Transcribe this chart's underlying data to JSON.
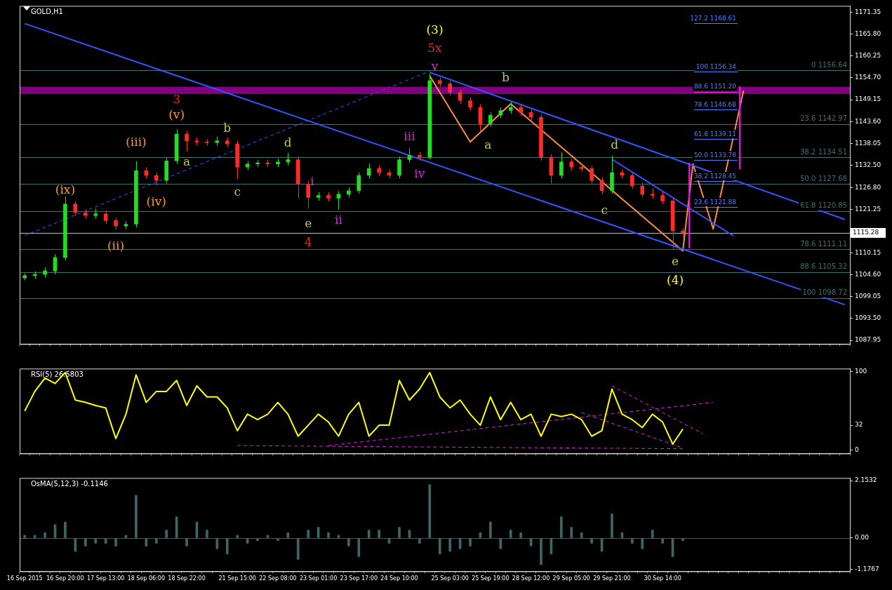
{
  "chart_data": [
    {
      "type": "candlestick",
      "title": "GOLD,H1",
      "grid": false,
      "categories": [
        null,
        null,
        null,
        null,
        null,
        null,
        null,
        null,
        null,
        null,
        null,
        null,
        null,
        null,
        null,
        null,
        null,
        null,
        null,
        null,
        null,
        null,
        null,
        null,
        null,
        null,
        null,
        null,
        null,
        null,
        null,
        null,
        null,
        null,
        null,
        null,
        null,
        null,
        null,
        null,
        null,
        null,
        null,
        null,
        null,
        null,
        null,
        null,
        null,
        null,
        null,
        null,
        null,
        null,
        null,
        null,
        null,
        null,
        null,
        null,
        null,
        null,
        null,
        null,
        null,
        null,
        null,
        null,
        null,
        null,
        null,
        null,
        null,
        null,
        null,
        null,
        null,
        null,
        null,
        null,
        null,
        null
      ],
      "ohlc": [
        [
          1103.8,
          1105.0,
          1103.2,
          1104.4
        ],
        [
          1104.4,
          1105.5,
          1103.6,
          1104.7
        ],
        [
          1104.7,
          1106.4,
          1103.9,
          1105.6
        ],
        [
          1105.6,
          1109.8,
          1104.8,
          1109.0
        ],
        [
          1109.0,
          1124.5,
          1108.2,
          1122.6
        ],
        [
          1122.6,
          1123.4,
          1119.6,
          1120.4
        ],
        [
          1120.4,
          1121.2,
          1118.9,
          1119.7
        ],
        [
          1119.7,
          1121.4,
          1118.9,
          1120.1
        ],
        [
          1120.1,
          1120.9,
          1117.6,
          1118.4
        ],
        [
          1118.4,
          1119.2,
          1116.2,
          1117.0
        ],
        [
          1117.0,
          1118.3,
          1116.2,
          1117.5
        ],
        [
          1117.5,
          1133.5,
          1116.7,
          1131.1
        ],
        [
          1131.1,
          1131.9,
          1129.1,
          1129.9
        ],
        [
          1129.9,
          1130.7,
          1127.4,
          1128.6
        ],
        [
          1128.6,
          1134.4,
          1127.8,
          1133.6
        ],
        [
          1133.6,
          1141.6,
          1132.8,
          1140.4
        ],
        [
          1140.4,
          1141.2,
          1136.0,
          1138.7
        ],
        [
          1138.7,
          1139.5,
          1137.6,
          1138.4
        ],
        [
          1138.4,
          1139.2,
          1137.4,
          1138.2
        ],
        [
          1138.2,
          1139.8,
          1137.4,
          1138.7
        ],
        [
          1138.7,
          1139.5,
          1137.1,
          1137.9
        ],
        [
          1137.9,
          1138.7,
          1129.0,
          1132.0
        ],
        [
          1132.0,
          1133.6,
          1131.2,
          1132.8
        ],
        [
          1132.8,
          1133.9,
          1132.0,
          1133.1
        ],
        [
          1133.1,
          1133.9,
          1132.0,
          1132.8
        ],
        [
          1132.8,
          1134.1,
          1132.0,
          1133.3
        ],
        [
          1133.3,
          1135.6,
          1132.5,
          1133.9
        ],
        [
          1133.9,
          1134.7,
          1124.0,
          1127.7
        ],
        [
          1127.7,
          1128.5,
          1121.5,
          1124.3
        ],
        [
          1124.3,
          1125.6,
          1123.5,
          1124.8
        ],
        [
          1124.8,
          1125.6,
          1123.3,
          1124.1
        ],
        [
          1124.1,
          1125.9,
          1121.2,
          1125.1
        ],
        [
          1125.1,
          1126.8,
          1124.3,
          1126.0
        ],
        [
          1126.0,
          1130.7,
          1125.2,
          1129.9
        ],
        [
          1129.9,
          1132.9,
          1129.1,
          1131.6
        ],
        [
          1131.6,
          1132.4,
          1129.8,
          1130.6
        ],
        [
          1130.6,
          1131.4,
          1129.1,
          1129.9
        ],
        [
          1129.9,
          1134.7,
          1129.1,
          1133.9
        ],
        [
          1133.9,
          1136.8,
          1133.1,
          1135.0
        ],
        [
          1135.0,
          1135.8,
          1133.7,
          1134.5
        ],
        [
          1134.5,
          1155.8,
          1134.0,
          1154.0
        ],
        [
          1154.0,
          1154.8,
          1152.4,
          1153.2
        ],
        [
          1153.2,
          1154.0,
          1150.2,
          1151.0
        ],
        [
          1151.0,
          1151.8,
          1148.1,
          1148.9
        ],
        [
          1148.9,
          1149.7,
          1146.4,
          1147.2
        ],
        [
          1147.2,
          1148.0,
          1141.0,
          1143.0
        ],
        [
          1143.0,
          1146.0,
          1142.2,
          1145.2
        ],
        [
          1145.2,
          1147.2,
          1144.4,
          1146.4
        ],
        [
          1146.4,
          1148.6,
          1145.6,
          1147.2
        ],
        [
          1147.2,
          1148.0,
          1145.1,
          1145.9
        ],
        [
          1145.9,
          1146.7,
          1143.9,
          1144.7
        ],
        [
          1144.7,
          1145.5,
          1133.7,
          1134.5
        ],
        [
          1134.5,
          1135.3,
          1127.8,
          1129.9
        ],
        [
          1129.9,
          1135.8,
          1129.1,
          1133.3
        ],
        [
          1133.3,
          1134.1,
          1131.2,
          1132.0
        ],
        [
          1132.0,
          1132.8,
          1130.8,
          1131.6
        ],
        [
          1131.6,
          1132.4,
          1127.8,
          1128.6
        ],
        [
          1128.6,
          1129.4,
          1125.2,
          1126.0
        ],
        [
          1126.0,
          1134.9,
          1125.2,
          1130.6
        ],
        [
          1130.6,
          1131.4,
          1129.1,
          1129.9
        ],
        [
          1129.9,
          1130.7,
          1126.4,
          1127.2
        ],
        [
          1127.2,
          1128.0,
          1124.3,
          1125.1
        ],
        [
          1125.1,
          1126.5,
          1124.0,
          1124.8
        ],
        [
          1124.8,
          1125.6,
          1122.6,
          1123.4
        ],
        [
          1123.4,
          1124.2,
          1111.2,
          1115.8
        ],
        [
          1115.8,
          1116.5,
          1114.2,
          1115.28
        ],
        null,
        null,
        null,
        null,
        null,
        null,
        null,
        null,
        null,
        null,
        null,
        null,
        null,
        null,
        null,
        null
      ],
      "series": [
        {
          "type": "line",
          "color": "#3355ff",
          "values": [
            1168.5,
            null,
            null,
            null,
            null,
            null,
            null,
            null,
            null,
            null,
            null,
            null,
            null,
            null,
            null,
            null,
            null,
            null,
            null,
            null,
            null,
            null,
            null,
            null,
            null,
            null,
            null,
            null,
            null,
            null,
            null,
            null,
            null,
            null,
            null,
            null,
            null,
            null,
            null,
            null,
            null,
            null,
            null,
            null,
            null,
            null,
            null,
            null,
            null,
            null,
            null,
            null,
            null,
            null,
            null,
            null,
            null,
            null,
            null,
            null,
            null,
            null,
            null,
            null,
            null,
            null,
            null,
            null,
            null,
            null,
            null,
            null,
            null,
            null,
            null,
            null,
            null,
            null,
            null,
            null,
            null,
            1097.0
          ]
        },
        {
          "type": "line",
          "color": "#3355ff",
          "values": [
            null,
            null,
            null,
            null,
            null,
            null,
            null,
            null,
            null,
            null,
            null,
            null,
            null,
            null,
            null,
            null,
            null,
            null,
            null,
            null,
            null,
            null,
            null,
            null,
            null,
            null,
            null,
            null,
            null,
            null,
            null,
            null,
            null,
            null,
            null,
            null,
            null,
            null,
            null,
            null,
            1156.1,
            null,
            null,
            null,
            null,
            null,
            null,
            null,
            null,
            null,
            null,
            null,
            null,
            null,
            null,
            null,
            null,
            null,
            null,
            null,
            null,
            null,
            null,
            null,
            null,
            null,
            null,
            null,
            null,
            null,
            null,
            null,
            null,
            null,
            null,
            null,
            null,
            null,
            null,
            null,
            null,
            1118.7
          ]
        },
        {
          "type": "line",
          "color": "#3355ff",
          "line_style": "dashed",
          "values": [
            1114.6,
            null,
            null,
            null,
            null,
            null,
            null,
            null,
            null,
            null,
            null,
            null,
            null,
            null,
            null,
            null,
            null,
            null,
            null,
            null,
            null,
            null,
            null,
            null,
            null,
            null,
            null,
            null,
            null,
            null,
            null,
            null,
            null,
            null,
            null,
            null,
            null,
            null,
            null,
            null,
            1156.4,
            null,
            null,
            null,
            null,
            null,
            null,
            null,
            null,
            null,
            null,
            null,
            null,
            null,
            null,
            null,
            null,
            null,
            null,
            null,
            null,
            null,
            null,
            null,
            null,
            null,
            null,
            null,
            null,
            null,
            null,
            null,
            null,
            null,
            null,
            null,
            null,
            null,
            null,
            null,
            null,
            null
          ]
        },
        {
          "type": "line",
          "color": "#3355ff",
          "values": [
            null,
            null,
            null,
            null,
            null,
            null,
            null,
            null,
            null,
            null,
            null,
            null,
            null,
            null,
            null,
            null,
            null,
            null,
            null,
            null,
            null,
            null,
            null,
            null,
            null,
            null,
            null,
            null,
            null,
            null,
            null,
            null,
            null,
            null,
            null,
            null,
            null,
            null,
            null,
            null,
            null,
            null,
            null,
            null,
            null,
            null,
            null,
            null,
            null,
            null,
            null,
            null,
            null,
            null,
            null,
            null,
            null,
            null,
            1134.0,
            null,
            null,
            null,
            null,
            null,
            null,
            null,
            null,
            null,
            null,
            null,
            1114.5,
            null,
            null,
            null,
            null,
            null,
            null,
            null,
            null,
            null,
            null,
            null
          ]
        },
        {
          "type": "line",
          "color": "#ff8c3a",
          "values": [
            null,
            null,
            null,
            null,
            null,
            null,
            null,
            null,
            null,
            null,
            null,
            null,
            null,
            null,
            null,
            null,
            null,
            null,
            null,
            null,
            null,
            null,
            null,
            null,
            null,
            null,
            null,
            null,
            null,
            null,
            null,
            null,
            null,
            null,
            null,
            null,
            null,
            null,
            null,
            null,
            1155.2,
            null,
            null,
            null,
            1138.4,
            null,
            null,
            null,
            1148.1,
            null,
            null,
            null,
            null,
            null,
            null,
            null,
            null,
            null,
            null,
            null,
            null,
            null,
            null,
            null,
            null,
            1110.7,
            1132.8,
            null,
            1116.3,
            null,
            null,
            1151.5,
            null,
            null,
            null,
            null,
            null,
            null,
            null,
            null,
            null,
            null
          ]
        }
      ],
      "ylim": [
        1087,
        1173
      ],
      "yticks": [
        1087.95,
        {
          "value": 1093.5,
          "label": "1093.50"
        },
        1099.05,
        {
          "value": 1104.6,
          "label": "1104.60"
        },
        1110.15,
        1121.25,
        {
          "value": 1126.8,
          "label": "1126.80"
        },
        {
          "value": 1132.5,
          "label": "1132.50"
        },
        1138.05,
        {
          "value": 1143.6,
          "label": "1143.60"
        },
        1149.15,
        {
          "value": 1154.7,
          "label": "1154.70"
        },
        1160.25,
        {
          "value": 1165.8,
          "label": "1165.80"
        },
        1171.35
      ],
      "ref_lines": [
        {
          "axis": "y",
          "value": 1156.64,
          "label": "0 1156.64",
          "color": "#3f7070"
        },
        {
          "axis": "y",
          "value": 1142.97,
          "label": "23.6 1142.97",
          "color": "#3f7070"
        },
        {
          "axis": "y",
          "value": 1134.51,
          "label": "38.2 1134.51",
          "color": "#3f7070"
        },
        {
          "axis": "y",
          "value": 1127.68,
          "label": "50.0 1127.68",
          "color": "#3f7070"
        },
        {
          "axis": "y",
          "value": 1120.85,
          "label": "61.8 1120.85",
          "color": "#3f7070"
        },
        {
          "axis": "y",
          "value": 1111.11,
          "label": "78.6 1111.11",
          "color": "#3f7070"
        },
        {
          "axis": "y",
          "value": 1105.32,
          "label": "88.6 1105.32",
          "color": "#3f7070"
        },
        {
          "axis": "y",
          "value": 1098.72,
          "label": "100 1098.72",
          "color": "#3f7070"
        },
        {
          "axis": "y",
          "value": 1168.61,
          "label": "127.2 1168.61",
          "color": "#4a7fff"
        },
        {
          "axis": "y",
          "value": 1156.34,
          "label": "100 1156.34",
          "color": "#4a7fff"
        },
        {
          "axis": "y",
          "value": 1151.2,
          "label": "88.6 1151.20",
          "color": "#4a7fff"
        },
        {
          "axis": "y",
          "value": 1146.68,
          "label": "78.6 1146.68",
          "color": "#4a7fff"
        },
        {
          "axis": "y",
          "value": 1139.11,
          "label": "61.8 1139.11",
          "color": "#4a7fff"
        },
        {
          "axis": "y",
          "value": 1133.78,
          "label": "50.0 1133.78",
          "color": "#4a7fff"
        },
        {
          "axis": "y",
          "value": 1128.45,
          "label": "38.2 1128.45",
          "color": "#4a7fff"
        },
        {
          "axis": "y",
          "value": 1121.88,
          "label": "23.6 1121.88",
          "color": "#4a7fff"
        },
        {
          "axis": "y",
          "value": 1115.28,
          "label": "1115.28",
          "color": "#c0c0c0"
        }
      ],
      "bands": [
        {
          "axis": "y",
          "from": 1150.6,
          "to": 1152.4,
          "color": "#800080"
        }
      ],
      "annotations": [
        "(ix)",
        "(ii)",
        "(iii)",
        "(iv)",
        "(v)",
        "3",
        "a",
        "b",
        "c",
        "d",
        "e",
        "4",
        "i",
        "ii",
        "iii",
        "iv",
        "(3)",
        "5x",
        "v",
        "a",
        "b",
        "c",
        "d",
        "e",
        "(4)"
      ]
    },
    {
      "type": "line",
      "title": "RSI(5) 26.5803",
      "grid": false,
      "categories": [
        null,
        null,
        null,
        null,
        null,
        null,
        null,
        null,
        null,
        null,
        null,
        null,
        null,
        null,
        null,
        null,
        null,
        null,
        null,
        null,
        null,
        null,
        null,
        null,
        null,
        null,
        null,
        null,
        null,
        null,
        null,
        null,
        null,
        null,
        null,
        null,
        null,
        null,
        null,
        null,
        null,
        null,
        null,
        null,
        null,
        null,
        null,
        null,
        null,
        null,
        null,
        null,
        null,
        null,
        null,
        null,
        null,
        null,
        null,
        null,
        null,
        null,
        null,
        null,
        null,
        null,
        null,
        null,
        null,
        null,
        null,
        null,
        null,
        null,
        null,
        null,
        null,
        null,
        null,
        null,
        null,
        null
      ],
      "series": [
        {
          "color": "#ffff00",
          "values": [
            50,
            75,
            92,
            85,
            99,
            64,
            61,
            57,
            54,
            15,
            46,
            96,
            61,
            75,
            75,
            89,
            57,
            82,
            68,
            68,
            54,
            25,
            46,
            39,
            46,
            61,
            46,
            18,
            32,
            46,
            36,
            18,
            46,
            61,
            18,
            32,
            32,
            89,
            64,
            78,
            99,
            68,
            54,
            64,
            46,
            32,
            68,
            39,
            61,
            39,
            46,
            18,
            46,
            43,
            46,
            39,
            18,
            25,
            78,
            46,
            39,
            29,
            46,
            36,
            8,
            27,
            null,
            null,
            null,
            null,
            null,
            null,
            null,
            null,
            null,
            null,
            null,
            null,
            null,
            null,
            null,
            null
          ]
        },
        {
          "color": "#e020e0",
          "line_style": "dashed",
          "values": [
            null,
            null,
            null,
            null,
            null,
            null,
            null,
            null,
            null,
            null,
            null,
            null,
            null,
            null,
            null,
            null,
            null,
            null,
            null,
            null,
            null,
            6,
            null,
            null,
            null,
            null,
            null,
            null,
            null,
            null,
            null,
            null,
            null,
            null,
            null,
            null,
            null,
            null,
            null,
            null,
            null,
            null,
            null,
            null,
            null,
            null,
            null,
            null,
            null,
            null,
            null,
            null,
            null,
            null,
            null,
            null,
            null,
            null,
            null,
            null,
            null,
            null,
            null,
            null,
            null,
            2,
            null,
            null,
            null,
            null,
            null,
            null,
            null,
            null,
            null,
            null,
            null,
            null,
            null,
            null,
            null,
            null
          ]
        },
        {
          "color": "#e020e0",
          "line_style": "dashed",
          "values": [
            null,
            null,
            null,
            null,
            null,
            null,
            null,
            null,
            null,
            null,
            null,
            null,
            null,
            null,
            null,
            null,
            null,
            null,
            null,
            null,
            null,
            null,
            null,
            null,
            null,
            null,
            null,
            null,
            null,
            null,
            6,
            null,
            null,
            null,
            null,
            null,
            null,
            null,
            null,
            null,
            null,
            null,
            null,
            null,
            null,
            null,
            null,
            null,
            null,
            null,
            null,
            null,
            null,
            null,
            null,
            null,
            null,
            null,
            null,
            null,
            null,
            null,
            null,
            null,
            null,
            null,
            null,
            null,
            61,
            null,
            null,
            null,
            null,
            null,
            null,
            null,
            null,
            null,
            null,
            null,
            null,
            null
          ]
        },
        {
          "color": "#e020e0",
          "line_style": "dashed",
          "values": [
            null,
            null,
            null,
            null,
            null,
            null,
            null,
            null,
            null,
            null,
            null,
            null,
            null,
            null,
            null,
            null,
            null,
            null,
            null,
            null,
            null,
            null,
            null,
            null,
            null,
            null,
            null,
            null,
            null,
            null,
            null,
            null,
            null,
            null,
            null,
            null,
            null,
            null,
            null,
            null,
            null,
            null,
            null,
            null,
            null,
            null,
            null,
            null,
            null,
            null,
            null,
            null,
            null,
            null,
            null,
            48,
            null,
            null,
            null,
            null,
            null,
            null,
            null,
            null,
            null,
            3,
            null,
            null,
            null,
            null,
            null,
            null,
            null,
            null,
            null,
            null,
            null,
            null,
            null,
            null,
            null,
            null
          ]
        },
        {
          "color": "#e020e0",
          "line_style": "dashed",
          "values": [
            null,
            null,
            null,
            null,
            null,
            null,
            null,
            null,
            null,
            null,
            null,
            null,
            null,
            null,
            null,
            null,
            null,
            null,
            null,
            null,
            null,
            null,
            null,
            null,
            null,
            null,
            null,
            null,
            null,
            null,
            null,
            null,
            null,
            null,
            null,
            null,
            null,
            null,
            null,
            null,
            null,
            null,
            null,
            null,
            null,
            null,
            null,
            null,
            null,
            null,
            null,
            null,
            null,
            null,
            null,
            null,
            null,
            null,
            82,
            null,
            null,
            null,
            null,
            null,
            null,
            null,
            null,
            21,
            null,
            null,
            null,
            null,
            null,
            null,
            null,
            null,
            null,
            null,
            null,
            null,
            null,
            null
          ]
        }
      ],
      "ylim": [
        -4,
        104
      ],
      "yticks": [
        0,
        32,
        100
      ]
    },
    {
      "type": "bar",
      "title": "OsMA(5,12,3) -0.1146",
      "grid": false,
      "color": "#3f6666",
      "categories": [
        "16 Sep 2015",
        null,
        null,
        null,
        "16 Sep 20:00",
        null,
        null,
        null,
        "17 Sep 13:00",
        null,
        null,
        null,
        "18 Sep 06:00",
        null,
        null,
        null,
        "18 Sep 22:00",
        null,
        null,
        null,
        null,
        "21 Sep 15:00",
        null,
        null,
        null,
        "22 Sep 08:00",
        null,
        null,
        null,
        "23 Sep 01:00",
        null,
        null,
        null,
        "23 Sep 17:00",
        null,
        null,
        null,
        "24 Sep 10:00",
        null,
        null,
        null,
        null,
        "25 Sep 03:00",
        null,
        null,
        null,
        "25 Sep 19:00",
        null,
        null,
        null,
        "28 Sep 12:00",
        null,
        null,
        null,
        "29 Sep 05:00",
        null,
        null,
        null,
        "29 Sep 21:00",
        null,
        null,
        null,
        null,
        "30 Sep 14:00",
        null,
        null,
        null,
        null,
        null,
        null,
        null,
        null,
        null,
        null,
        null,
        null,
        null,
        null,
        null,
        null,
        null,
        null
      ],
      "values": [
        0.1,
        0.1,
        0.2,
        0.5,
        0.6,
        -0.5,
        -0.3,
        -0.2,
        -0.2,
        -0.3,
        0.1,
        1.6,
        -0.3,
        -0.2,
        0.3,
        0.8,
        -0.3,
        0.6,
        0.3,
        -0.4,
        -0.6,
        0.1,
        -0.2,
        -0.1,
        0.1,
        -0.1,
        0.2,
        -0.8,
        0.3,
        0.4,
        0.2,
        0.1,
        -0.3,
        -0.7,
        0.3,
        0.3,
        -0.2,
        0.4,
        0.3,
        -0.2,
        2.0,
        -0.6,
        -0.5,
        -0.4,
        -0.3,
        0.2,
        0.6,
        -0.4,
        0.3,
        0.2,
        -0.3,
        -1.0,
        -0.6,
        0.8,
        0.4,
        0.2,
        -0.2,
        -0.5,
        0.9,
        0.2,
        -0.2,
        -0.4,
        0.3,
        -0.2,
        -0.7,
        -0.1,
        null,
        null,
        null,
        null,
        null,
        null,
        null,
        null,
        null,
        null,
        null,
        null,
        null,
        null,
        null,
        null
      ],
      "ylim": [
        -1.25,
        2.25
      ],
      "yticks": [
        -1.1767,
        {
          "value": 0,
          "label": "0.00"
        },
        2.1532
      ],
      "ref_lines": [
        {
          "axis": "y",
          "value": 0,
          "color": "#3355aa"
        }
      ]
    }
  ]
}
